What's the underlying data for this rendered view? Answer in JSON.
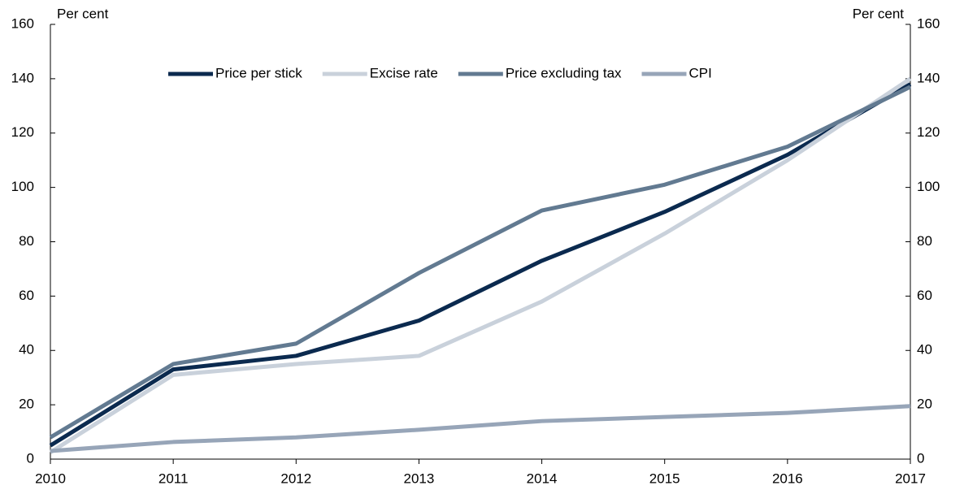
{
  "chart_data": {
    "type": "line",
    "y_label": "Per cent",
    "y2_label": "Per cent",
    "x": [
      2010,
      2011,
      2012,
      2013,
      2014,
      2015,
      2016,
      2017
    ],
    "xlim": [
      2010,
      2017
    ],
    "xticks": [
      2010,
      2011,
      2012,
      2013,
      2014,
      2015,
      2016,
      2017
    ],
    "ylim": [
      0,
      160
    ],
    "yticks": [
      0,
      20,
      40,
      60,
      80,
      100,
      120,
      140,
      160
    ],
    "y2lim": [
      0,
      160
    ],
    "y2ticks": [
      0,
      20,
      40,
      60,
      80,
      100,
      120,
      140,
      160
    ],
    "legend": "top",
    "series": [
      {
        "name": "Price per stick",
        "color": "#0b2a4f",
        "values": [
          5,
          33,
          38,
          51,
          73,
          91,
          112,
          138
        ]
      },
      {
        "name": "Excise rate",
        "color": "#c9d1db",
        "values": [
          2.5,
          31,
          35,
          38,
          58,
          83,
          110,
          140
        ]
      },
      {
        "name": "Price excluding tax",
        "color": "#627a91",
        "values": [
          8,
          35,
          42.5,
          68.5,
          91.5,
          101,
          115,
          137
        ]
      },
      {
        "name": "CPI",
        "color": "#97a5b8",
        "values": [
          3,
          6.3,
          8,
          10.8,
          14,
          15.5,
          17,
          19.5
        ]
      }
    ]
  }
}
